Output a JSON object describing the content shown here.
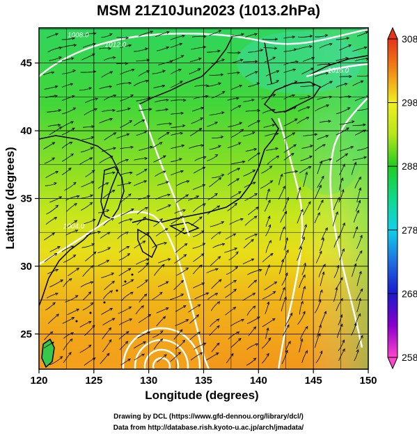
{
  "title": "MSM 21Z10Jun2023 (1013.2hPa)",
  "xlabel": "Longitude (degrees)",
  "ylabel": "Latitude  (degrees)",
  "credits": {
    "line1": "Drawing by DCL (https://www.gfd-dennou.org/library/dcl/)",
    "line2": "Data from http://database.rish.kyoto-u.ac.jp/arch/jmadata/"
  },
  "chart_data": {
    "type": "heatmap",
    "x_range": [
      120,
      150
    ],
    "y_range": [
      22.4,
      47.6
    ],
    "x_ticks": [
      "120",
      "125",
      "130",
      "135",
      "140",
      "145",
      "150"
    ],
    "y_ticks": [
      "25",
      "30",
      "35",
      "40",
      "45"
    ],
    "colorbar": {
      "ticks": [
        "258",
        "268",
        "278",
        "288",
        "298",
        "308"
      ],
      "range": [
        258,
        308
      ],
      "stops": [
        {
          "value": 258,
          "color": "#ff44cc"
        },
        {
          "value": 263,
          "color": "#8800cc"
        },
        {
          "value": 268,
          "color": "#1a1acc"
        },
        {
          "value": 273,
          "color": "#1f6fe0"
        },
        {
          "value": 278,
          "color": "#11d0e8"
        },
        {
          "value": 283,
          "color": "#11d88a"
        },
        {
          "value": 288,
          "color": "#22cc22"
        },
        {
          "value": 293,
          "color": "#b6e61a"
        },
        {
          "value": 298,
          "color": "#f0ee22"
        },
        {
          "value": 303,
          "color": "#f08a16"
        },
        {
          "value": 308,
          "color": "#e53517"
        }
      ]
    },
    "pressure_contour_labels": [
      {
        "text": "1008.0",
        "lon": 122.6,
        "lat": 46.9
      },
      {
        "text": "1004.0",
        "lon": 122.2,
        "lat": 32.8
      },
      {
        "text": "1012.0",
        "lon": 126.0,
        "lat": 46.2
      },
      {
        "text": "1016.0",
        "lon": 146.3,
        "lat": 44.3
      }
    ],
    "grid": true
  }
}
